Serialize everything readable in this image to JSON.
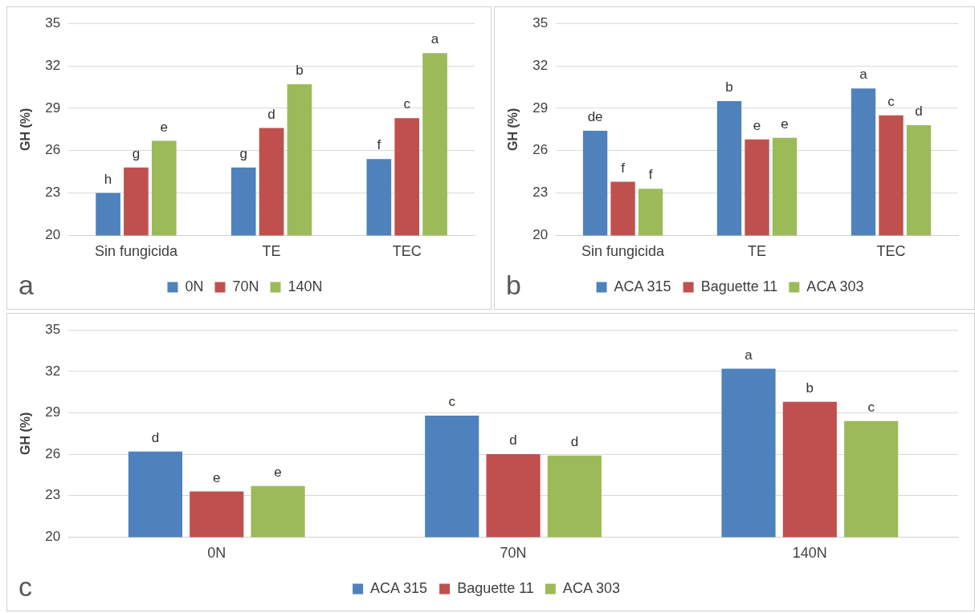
{
  "chart_data": [
    {
      "type": "bar",
      "categories": [
        "Sin fungicida",
        "TE",
        "TEC"
      ],
      "ylabel": "GH (%)",
      "ylim": [
        20,
        35
      ],
      "yticks": [
        20,
        23,
        26,
        29,
        32,
        35
      ],
      "grid": "y",
      "legend": "bottom",
      "annotations": [
        "a"
      ],
      "series": [
        {
          "name": "0N",
          "color": "#4f81bd",
          "values": [
            23.0,
            24.8,
            25.4
          ],
          "value_labels": [
            "h",
            "g",
            "f"
          ]
        },
        {
          "name": "70N",
          "color": "#c0504d",
          "values": [
            24.8,
            27.6,
            28.3
          ],
          "value_labels": [
            "g",
            "d",
            "c"
          ]
        },
        {
          "name": "140N",
          "color": "#9bbb59",
          "values": [
            26.7,
            30.7,
            32.9
          ],
          "value_labels": [
            "e",
            "b",
            "a"
          ]
        }
      ]
    },
    {
      "type": "bar",
      "categories": [
        "Sin fungicida",
        "TE",
        "TEC"
      ],
      "ylabel": "GH (%)",
      "ylim": [
        20,
        35
      ],
      "yticks": [
        20,
        23,
        26,
        29,
        32,
        35
      ],
      "grid": "y",
      "legend": "bottom",
      "annotations": [
        "b"
      ],
      "series": [
        {
          "name": "ACA 315",
          "color": "#4f81bd",
          "values": [
            27.4,
            29.5,
            30.4
          ],
          "value_labels": [
            "de",
            "b",
            "a"
          ]
        },
        {
          "name": "Baguette 11",
          "color": "#c0504d",
          "values": [
            23.8,
            26.8,
            28.5
          ],
          "value_labels": [
            "f",
            "e",
            "c"
          ]
        },
        {
          "name": "ACA 303",
          "color": "#9bbb59",
          "values": [
            23.3,
            26.9,
            27.8
          ],
          "value_labels": [
            "f",
            "e",
            "d"
          ]
        }
      ]
    },
    {
      "type": "bar",
      "categories": [
        "0N",
        "70N",
        "140N"
      ],
      "ylabel": "GH (%)",
      "ylim": [
        20,
        35
      ],
      "yticks": [
        20,
        23,
        26,
        29,
        32,
        35
      ],
      "grid": "y",
      "legend": "bottom",
      "annotations": [
        "c"
      ],
      "series": [
        {
          "name": "ACA 315",
          "color": "#4f81bd",
          "values": [
            26.2,
            28.8,
            32.2
          ],
          "value_labels": [
            "d",
            "c",
            "a"
          ]
        },
        {
          "name": "Baguette 11",
          "color": "#c0504d",
          "values": [
            23.3,
            26.0,
            29.8
          ],
          "value_labels": [
            "e",
            "d",
            "b"
          ]
        },
        {
          "name": "ACA 303",
          "color": "#9bbb59",
          "values": [
            23.7,
            25.9,
            28.4
          ],
          "value_labels": [
            "e",
            "d",
            "c"
          ]
        }
      ]
    }
  ]
}
